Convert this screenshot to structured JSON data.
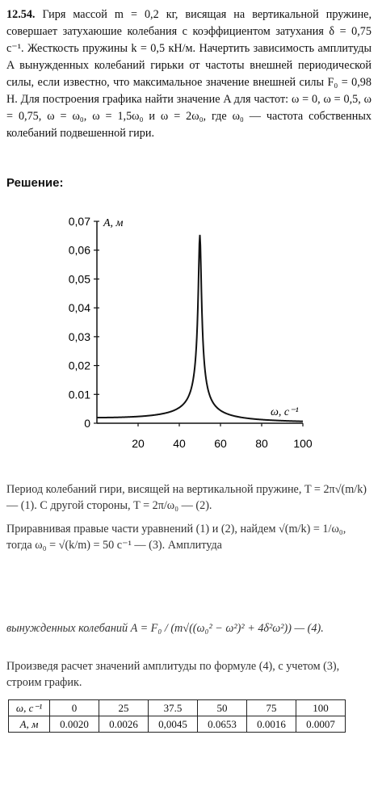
{
  "problem": {
    "number": "12.54.",
    "text": "Гиря массой m = 0,2 кг, висящая на вертикальной пружине, совершает затухаюшие колебания с коэффициентом затухания δ = 0,75 с⁻¹. Жесткость пружины k = 0,5 кН/м. Начертить зависимость амплитуды A вынужденных колебаний гирьки от частоты внешней периодической силы, если известно, что максимальное значение внешней силы F₀ = 0,98 Н. Для построения графика найти значение A для частот: ω = 0, ω = 0,5, ω = 0,75, ω = ω₀, ω = 1,5ω₀ и ω = 2ω₀, где ω₀ — частота собственных колебаний подвешенной гири."
  },
  "solution_heading": "Решение:",
  "solution": {
    "p1": "Период колебаний гири, висящей на вертикальной пружине, T = 2π√(m/k) — (1). С другой стороны, T = 2π/ω₀ — (2).",
    "p2": "Приравнивая правые части уравнений (1) и (2), найдем √(m/k) = 1/ω₀, тогда ω₀ = √(k/m) = 50 с⁻¹ — (3). Амплитуда",
    "p3": "вынужденных колебаний A = F₀ / (m√((ω₀² − ω²)² + 4δ²ω²)) — (4).",
    "p4": "Произведя расчет значений амплитуды по формуле (4), с учетом (3), строим график."
  },
  "table": {
    "row_labels": [
      "ω, с⁻¹",
      "A, м"
    ],
    "omega": [
      "0",
      "25",
      "37.5",
      "50",
      "75",
      "100"
    ],
    "amplitude": [
      "0.0020",
      "0.0026",
      "0,0045",
      "0.0653",
      "0.0016",
      "0.0007"
    ]
  },
  "chart_data": {
    "type": "line",
    "ylabel": "A, м",
    "xlabel": "ω, с⁻¹",
    "xlim": [
      0,
      100
    ],
    "ylim": [
      0,
      0.07
    ],
    "xticks": [
      "20",
      "40",
      "60",
      "80",
      "100"
    ],
    "yticks": [
      "0",
      "0.01",
      "0,02",
      "0,03",
      "0,04",
      "0,05",
      "0,06",
      "0,07"
    ],
    "omega0": 50,
    "delta": 0.75,
    "points": [
      [
        0,
        0.002
      ],
      [
        25,
        0.0026
      ],
      [
        37.5,
        0.0045
      ],
      [
        50,
        0.0653
      ],
      [
        75,
        0.0016
      ],
      [
        100,
        0.0007
      ]
    ],
    "grid": false,
    "line_color": "#111111"
  }
}
